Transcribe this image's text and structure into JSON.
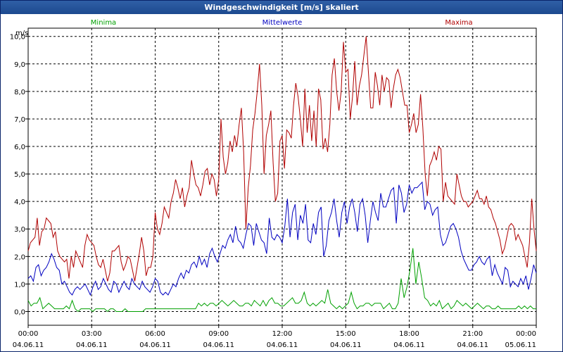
{
  "window": {
    "title": "Windgeschwindigkeit [m/s] skaliert"
  },
  "chart_data": {
    "type": "line",
    "title": "Windgeschwindigkeit [m/s] skaliert",
    "ylabel": "m/s",
    "xlabel": "",
    "ylim": [
      -0.5,
      10.3
    ],
    "xlim": [
      0,
      24
    ],
    "y_ticks": [
      "0,0",
      "1,0",
      "2,0",
      "3,0",
      "4,0",
      "5,0",
      "6,0",
      "7,0",
      "8,0",
      "9,0",
      "10,0"
    ],
    "x_ticks": [
      {
        "time": "00:00",
        "date": "04.06.11"
      },
      {
        "time": "03:00",
        "date": "04.06.11"
      },
      {
        "time": "06:00",
        "date": "04.06.11"
      },
      {
        "time": "09:00",
        "date": "04.06.11"
      },
      {
        "time": "12:00",
        "date": "04.06.11"
      },
      {
        "time": "15:00",
        "date": "04.06.11"
      },
      {
        "time": "18:00",
        "date": "04.06.11"
      },
      {
        "time": "21:00",
        "date": "04.06.11"
      },
      {
        "time": "00:00",
        "date": "05.06.11"
      }
    ],
    "grid": true,
    "legend_placement": "top",
    "series": [
      {
        "name": "Minima",
        "color": "#00a000",
        "values": [
          0.4,
          0.2,
          0.3,
          0.3,
          0.5,
          0.1,
          0.2,
          0.3,
          0.2,
          0.1,
          0.1,
          0.1,
          0.1,
          0.2,
          0.1,
          0.4,
          0.1,
          0.0,
          0.1,
          0.1,
          0.1,
          0.1,
          0.0,
          0.1,
          0.1,
          0.1,
          0.1,
          0.0,
          0.1,
          0.1,
          0.0,
          0.0,
          0.0,
          0.1,
          0.0,
          0.0,
          0.0,
          0.0,
          0.0,
          0.0,
          0.1,
          0.1,
          0.1,
          0.1,
          0.1,
          0.1,
          0.1,
          0.1,
          0.1,
          0.1,
          0.1,
          0.1,
          0.1,
          0.1,
          0.1,
          0.1,
          0.1,
          0.1,
          0.3,
          0.2,
          0.3,
          0.2,
          0.3,
          0.3,
          0.2,
          0.3,
          0.4,
          0.3,
          0.2,
          0.3,
          0.4,
          0.3,
          0.2,
          0.2,
          0.3,
          0.3,
          0.2,
          0.4,
          0.3,
          0.2,
          0.4,
          0.2,
          0.4,
          0.5,
          0.3,
          0.3,
          0.2,
          0.2,
          0.3,
          0.4,
          0.5,
          0.3,
          0.3,
          0.4,
          0.7,
          0.3,
          0.2,
          0.3,
          0.2,
          0.3,
          0.4,
          0.3,
          0.8,
          0.3,
          0.2,
          0.1,
          0.2,
          0.1,
          0.2,
          0.3,
          0.7,
          0.3,
          0.1,
          0.2,
          0.2,
          0.3,
          0.3,
          0.2,
          0.3,
          0.3,
          0.3,
          0.1,
          0.2,
          0.3,
          0.1,
          0.1,
          0.3,
          1.2,
          0.5,
          0.9,
          1.5,
          2.3,
          1.0,
          1.8,
          1.2,
          0.5,
          0.4,
          0.2,
          0.3,
          0.2,
          0.4,
          0.1,
          0.2,
          0.3,
          0.1,
          0.2,
          0.4,
          0.3,
          0.2,
          0.3,
          0.2,
          0.1,
          0.2,
          0.3,
          0.2,
          0.1,
          0.2,
          0.2,
          0.1,
          0.1,
          0.2,
          0.1,
          0.1,
          0.1,
          0.1,
          0.1,
          0.1,
          0.2,
          0.1,
          0.2,
          0.1,
          0.2,
          0.1,
          0.1
        ]
      },
      {
        "name": "Mittelwerte",
        "color": "#0000c0",
        "values": [
          1.2,
          1.3,
          1.1,
          1.6,
          1.7,
          1.3,
          1.5,
          1.6,
          1.8,
          2.1,
          1.9,
          1.6,
          1.5,
          1.0,
          1.1,
          0.9,
          0.7,
          0.6,
          0.8,
          0.9,
          0.8,
          0.9,
          1.0,
          0.8,
          0.6,
          0.9,
          1.1,
          0.8,
          0.9,
          1.2,
          1.0,
          0.8,
          0.7,
          1.1,
          1.0,
          0.7,
          0.9,
          1.1,
          0.9,
          0.8,
          1.2,
          1.0,
          0.9,
          0.8,
          1.1,
          0.9,
          0.8,
          0.7,
          0.9,
          1.2,
          1.1,
          0.7,
          0.6,
          0.7,
          0.6,
          0.8,
          1.0,
          0.9,
          1.2,
          1.4,
          1.2,
          1.5,
          1.4,
          1.7,
          1.8,
          1.6,
          2.0,
          1.7,
          1.9,
          1.6,
          2.1,
          2.3,
          2.0,
          1.8,
          2.1,
          2.4,
          2.3,
          2.6,
          2.8,
          2.5,
          3.1,
          2.6,
          2.5,
          2.3,
          2.8,
          3.2,
          3.1,
          2.4,
          3.2,
          2.9,
          2.6,
          2.5,
          2.1,
          3.4,
          2.7,
          2.6,
          2.8,
          2.7,
          2.5,
          3.1,
          4.1,
          2.7,
          3.6,
          3.9,
          2.6,
          3.5,
          3.2,
          3.9,
          2.6,
          2.5,
          3.2,
          2.8,
          3.6,
          3.8,
          2.0,
          2.4,
          3.3,
          3.6,
          4.1,
          3.3,
          2.7,
          3.6,
          4.0,
          3.2,
          3.8,
          4.1,
          3.6,
          2.9,
          3.9,
          4.1,
          3.5,
          2.5,
          3.3,
          4.0,
          3.6,
          3.3,
          4.3,
          3.8,
          3.8,
          4.1,
          4.4,
          4.5,
          3.2,
          4.6,
          4.3,
          3.6,
          3.9,
          4.6,
          4.3,
          4.5,
          4.5,
          4.6,
          4.7,
          3.7,
          4.0,
          3.9,
          3.5,
          3.7,
          3.8,
          2.8,
          2.4,
          2.5,
          2.8,
          3.1,
          3.2,
          3.0,
          2.7,
          2.2,
          1.9,
          1.7,
          1.5,
          1.5,
          1.7,
          1.8,
          2.0,
          1.8,
          1.7,
          1.9,
          2.0,
          1.3,
          1.7,
          1.4,
          1.2,
          1.0,
          1.6,
          1.5,
          0.9,
          1.1,
          1.0,
          0.9,
          1.2,
          1.0,
          1.3,
          0.8,
          1.2,
          1.7,
          1.4
        ]
      },
      {
        "name": "Maxima",
        "color": "#b00000",
        "values": [
          2.2,
          2.5,
          2.6,
          2.7,
          3.4,
          2.4,
          2.9,
          3.0,
          3.4,
          3.3,
          3.2,
          2.7,
          2.9,
          2.2,
          2.0,
          1.9,
          1.8,
          1.9,
          1.2,
          2.0,
          1.6,
          2.2,
          2.0,
          1.8,
          1.6,
          2.4,
          2.8,
          2.6,
          2.5,
          2.4,
          2.0,
          1.7,
          1.6,
          1.9,
          1.5,
          1.1,
          1.4,
          2.2,
          2.2,
          2.3,
          2.4,
          1.8,
          1.5,
          1.7,
          2.0,
          1.9,
          1.5,
          1.1,
          1.6,
          2.1,
          2.7,
          2.2,
          1.3,
          1.6,
          1.6,
          2.0,
          3.6,
          3.0,
          2.8,
          3.2,
          3.8,
          3.6,
          3.4,
          4.0,
          4.3,
          4.8,
          4.5,
          4.1,
          4.5,
          3.8,
          4.2,
          4.5,
          5.5,
          5.0,
          4.6,
          4.5,
          4.2,
          4.6,
          5.1,
          5.2,
          4.6,
          5.0,
          4.8,
          4.2,
          4.8,
          7.0,
          5.6,
          5.0,
          5.4,
          6.2,
          5.8,
          6.4,
          6.0,
          6.8,
          7.4,
          5.8,
          3.0,
          4.5,
          5.3,
          6.6,
          7.2,
          8.0,
          9.0,
          7.5,
          5.0,
          6.4,
          6.8,
          7.3,
          5.4,
          4.0,
          4.3,
          6.2,
          6.4,
          5.2,
          6.6,
          6.5,
          6.3,
          7.5,
          8.3,
          7.8,
          7.0,
          6.0,
          8.1,
          6.5,
          7.5,
          6.2,
          7.3,
          6.0,
          8.1,
          7.7,
          5.9,
          6.3,
          5.8,
          6.8,
          8.6,
          9.2,
          8.0,
          7.3,
          8.0,
          9.8,
          8.7,
          8.8,
          7.0,
          7.8,
          9.1,
          7.5,
          8.2,
          8.6,
          9.3,
          10.0,
          8.7,
          7.4,
          7.4,
          8.7,
          8.2,
          7.5,
          8.6,
          8.0,
          8.5,
          8.4,
          7.4,
          8.1,
          8.6,
          8.8,
          8.5,
          8.0,
          7.5,
          7.5,
          6.5,
          6.8,
          7.2,
          6.5,
          6.8,
          7.9,
          6.7,
          5.0,
          4.2,
          5.3,
          5.5,
          5.8,
          5.5,
          6.0,
          5.9,
          4.0,
          4.7,
          4.2,
          4.1,
          4.0,
          3.9,
          5.0,
          4.6,
          4.2,
          4.0,
          4.0,
          3.8,
          3.9,
          4.0,
          4.2,
          4.4,
          4.1,
          4.1,
          3.9,
          4.2,
          3.8,
          3.7,
          3.4,
          3.2,
          2.9,
          2.6,
          2.1,
          2.3,
          2.7,
          3.1,
          3.2,
          3.1,
          2.6,
          2.8,
          2.6,
          2.4,
          2.0,
          1.6,
          2.5,
          4.1,
          3.0,
          2.2
        ]
      }
    ]
  }
}
